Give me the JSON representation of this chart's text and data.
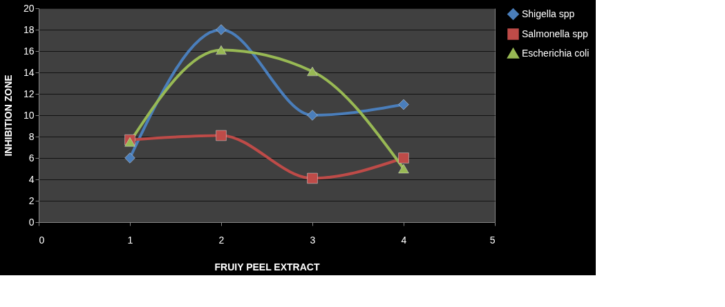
{
  "chart_data": {
    "type": "line",
    "xlabel": "FRUIY PEEL EXTRACT",
    "ylabel": "INHIBITION  ZONE",
    "x": [
      1,
      2,
      3,
      4
    ],
    "series": [
      {
        "name": "Shigella spp",
        "color": "#4a7ebb",
        "marker": "diamond",
        "values": [
          6,
          18,
          10,
          11
        ]
      },
      {
        "name": "Salmonella spp",
        "color": "#be4b48",
        "marker": "square",
        "values": [
          7.7,
          8.1,
          4.1,
          6
        ]
      },
      {
        "name": "Escherichia  coli",
        "color": "#98b954",
        "marker": "triangle",
        "values": [
          7.5,
          16.1,
          14.1,
          5
        ]
      }
    ],
    "xlim": [
      0,
      5
    ],
    "xticks": [
      0,
      1,
      2,
      3,
      4,
      5
    ],
    "ylim": [
      0,
      20
    ],
    "yticks": [
      0,
      2,
      4,
      6,
      8,
      10,
      12,
      14,
      16,
      18,
      20
    ],
    "grid": "y",
    "legend": "right",
    "line_style": "solid"
  }
}
